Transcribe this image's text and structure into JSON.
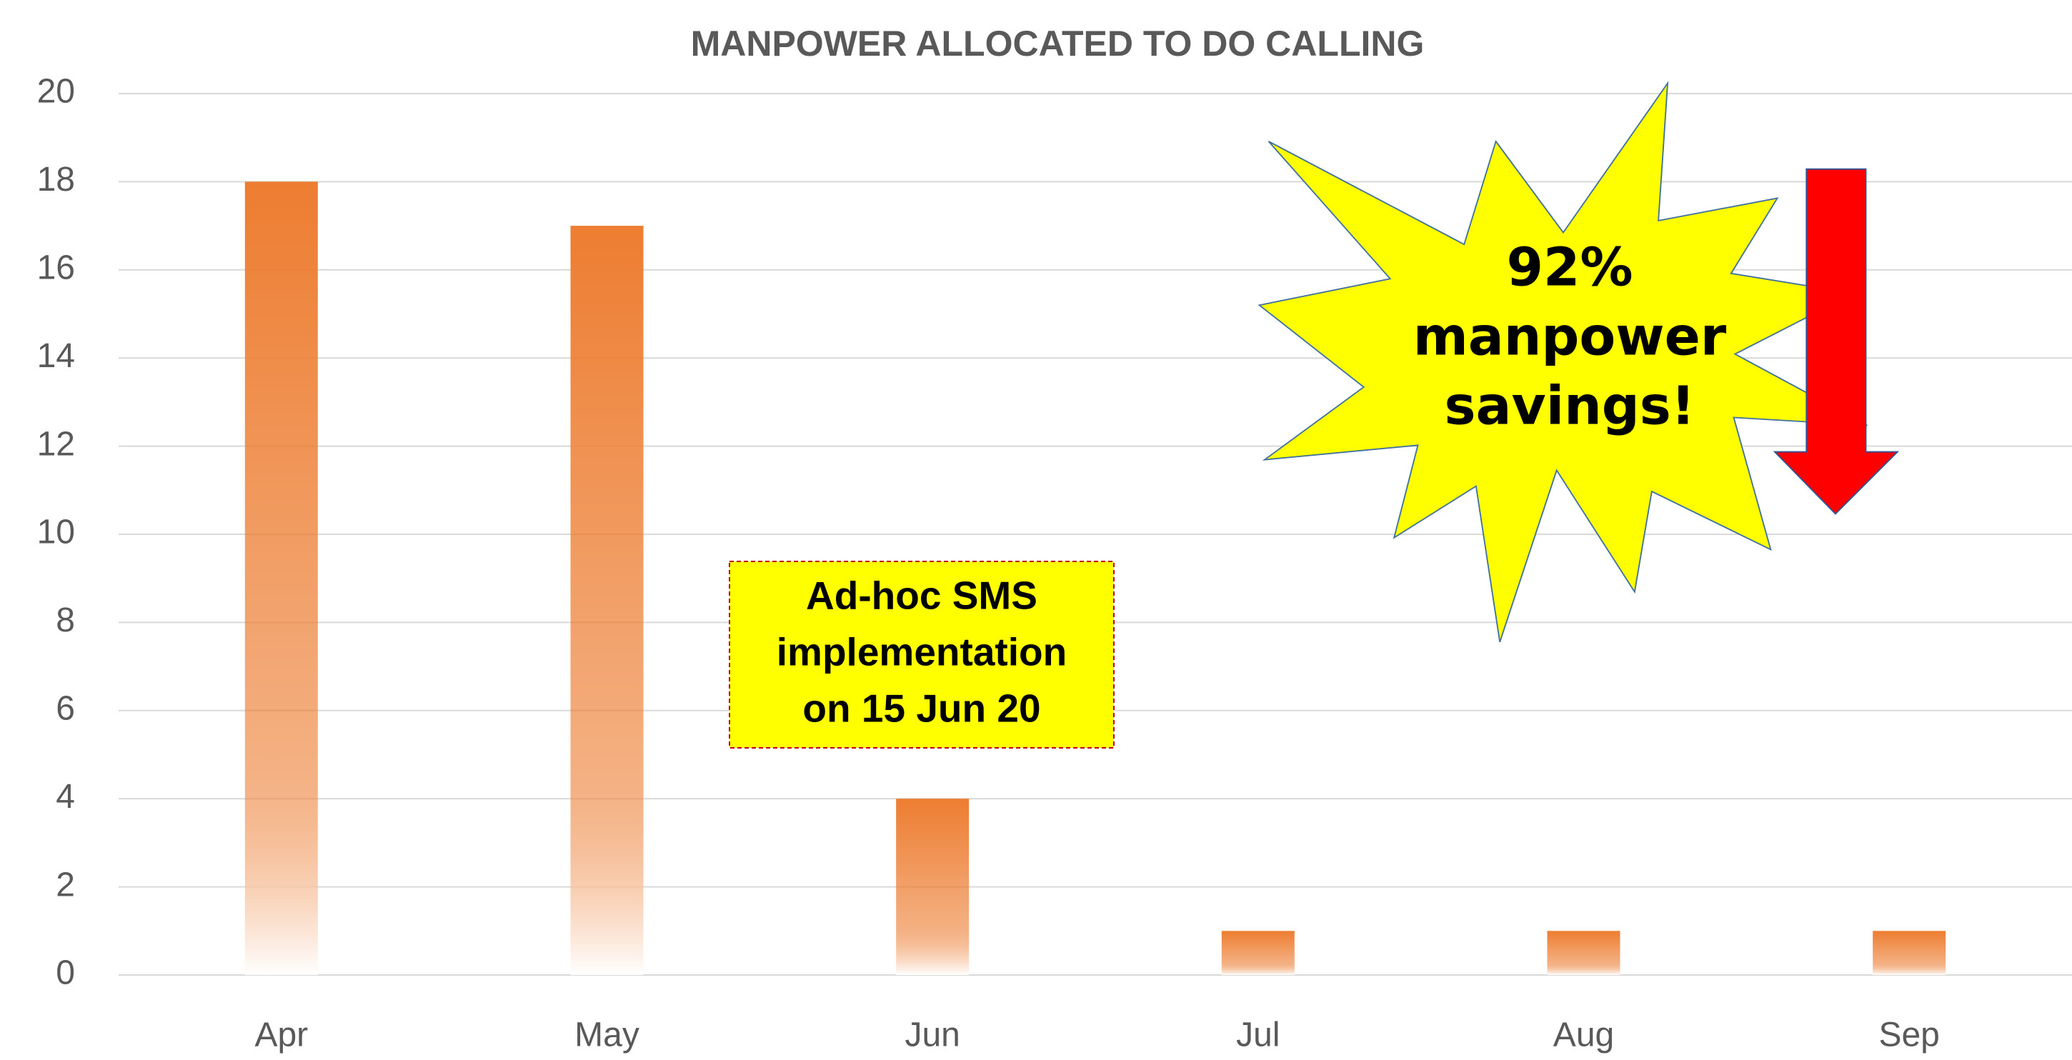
{
  "chart_data": {
    "type": "bar",
    "title": "MANPOWER ALLOCATED TO DO CALLING",
    "categories": [
      "Apr",
      "May",
      "Jun",
      "Jul",
      "Aug",
      "Sep"
    ],
    "values": [
      18,
      17,
      4,
      1,
      1,
      1
    ],
    "color": "#ed7d31",
    "ylim": [
      0,
      20
    ],
    "yticks": [
      0,
      2,
      4,
      6,
      8,
      10,
      12,
      14,
      16,
      18,
      20
    ],
    "grid": true,
    "annotations": [
      [
        "Ad-hoc SMS",
        "implementation",
        "on 15 Jun 20"
      ],
      [
        "92%",
        "manpower",
        "savings!"
      ]
    ]
  }
}
